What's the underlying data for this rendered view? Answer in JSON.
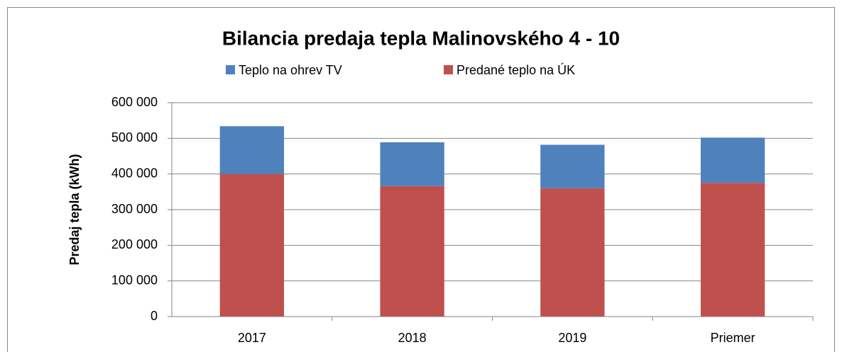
{
  "chart_data": {
    "type": "stacked_bar",
    "title": "Bilancia predaja tepla  Malinovského 4 - 10",
    "y_label": "Predaj tepla (kWh)",
    "categories": [
      "2017",
      "2018",
      "2019",
      "Priemer"
    ],
    "series": [
      {
        "name": "Teplo na ohrev TV",
        "color": "#4f81bd",
        "values": [
          134000,
          123000,
          122000,
          127000
        ]
      },
      {
        "name": "Predané teplo na ÚK",
        "color": "#c0504d",
        "values": [
          400000,
          366000,
          360000,
          375000
        ]
      }
    ],
    "ylim": [
      0,
      600000
    ],
    "yticks": [
      0,
      {
        "value": 100000,
        "label": "100 000"
      },
      {
        "value": 200000,
        "label": "200 000"
      },
      {
        "value": 300000,
        "label": "300 000"
      },
      {
        "value": 400000,
        "label": "400 000"
      },
      {
        "value": 500000,
        "label": "500 000"
      },
      {
        "value": 600000,
        "label": "600 000"
      }
    ],
    "grid": true
  }
}
